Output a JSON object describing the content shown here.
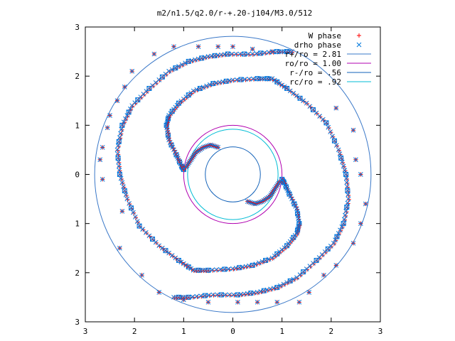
{
  "chart_data": {
    "type": "scatter",
    "title": "m2/n1.5/q2.0/r-+.20-j104/M3.0/512",
    "xlim": [
      -3,
      3
    ],
    "ylim": [
      -3,
      3
    ],
    "xticks": [
      {
        "value": -3,
        "label": "3"
      },
      {
        "value": -2,
        "label": "2"
      },
      {
        "value": -1,
        "label": "1"
      },
      {
        "value": 0,
        "label": "0"
      },
      {
        "value": 1,
        "label": "1"
      },
      {
        "value": 2,
        "label": "2"
      },
      {
        "value": 3,
        "label": "3"
      }
    ],
    "yticks": [
      {
        "value": 3,
        "label": "3"
      },
      {
        "value": 2,
        "label": "2"
      },
      {
        "value": 1,
        "label": "1"
      },
      {
        "value": 0,
        "label": "0"
      },
      {
        "value": -1,
        "label": "1"
      },
      {
        "value": -2,
        "label": "2"
      },
      {
        "value": -3,
        "label": "3"
      }
    ],
    "legend_position": "top-right",
    "spiral_series": [
      {
        "name": "W phase",
        "marker": "+",
        "color": "#ff0000"
      },
      {
        "name": "drho phase",
        "marker": "x",
        "color": "#0077dd"
      }
    ],
    "spiral_curves": {
      "inner_arm": [
        [
          -1.0,
          0.1
        ],
        [
          -1.05,
          0.18
        ],
        [
          -1.15,
          0.4
        ],
        [
          -1.3,
          0.7
        ],
        [
          -1.35,
          1.0
        ],
        [
          -1.3,
          1.2
        ],
        [
          -1.1,
          1.45
        ],
        [
          -0.8,
          1.7
        ],
        [
          -0.4,
          1.85
        ],
        [
          0,
          1.92
        ],
        [
          0.5,
          1.95
        ],
        [
          0.8,
          1.95
        ],
        [
          1.1,
          1.75
        ],
        [
          1.5,
          1.45
        ],
        [
          1.9,
          1.05
        ],
        [
          2.15,
          0.5
        ],
        [
          2.3,
          0.0
        ],
        [
          2.35,
          -0.5
        ],
        [
          2.25,
          -1.0
        ],
        [
          2.05,
          -1.4
        ],
        [
          1.7,
          -1.75
        ],
        [
          1.3,
          -2.1
        ],
        [
          0.9,
          -2.3
        ],
        [
          0.5,
          -2.4
        ],
        [
          0.1,
          -2.45
        ],
        [
          -0.4,
          -2.45
        ],
        [
          -0.9,
          -2.5
        ],
        [
          -1.2,
          -2.5
        ]
      ],
      "inner_arm_mirror": [
        [
          1.0,
          -0.1
        ],
        [
          1.05,
          -0.18
        ],
        [
          1.15,
          -0.4
        ],
        [
          1.3,
          -0.7
        ],
        [
          1.35,
          -1.0
        ],
        [
          1.3,
          -1.2
        ],
        [
          1.1,
          -1.45
        ],
        [
          0.8,
          -1.7
        ],
        [
          0.4,
          -1.85
        ],
        [
          0,
          -1.92
        ],
        [
          -0.5,
          -1.95
        ],
        [
          -0.8,
          -1.95
        ],
        [
          -1.1,
          -1.75
        ],
        [
          -1.5,
          -1.45
        ],
        [
          -1.9,
          -1.05
        ],
        [
          -2.15,
          -0.5
        ],
        [
          -2.3,
          0.0
        ],
        [
          -2.35,
          0.5
        ],
        [
          -2.25,
          1.0
        ],
        [
          -2.05,
          1.4
        ],
        [
          -1.7,
          1.75
        ],
        [
          -1.3,
          2.1
        ],
        [
          -0.9,
          2.3
        ],
        [
          -0.5,
          2.4
        ],
        [
          -0.1,
          2.45
        ],
        [
          0.4,
          2.45
        ],
        [
          0.9,
          2.5
        ],
        [
          1.2,
          2.5
        ]
      ],
      "hook_top": [
        [
          -0.95,
          0.15
        ],
        [
          -0.85,
          0.3
        ],
        [
          -0.75,
          0.45
        ],
        [
          -0.6,
          0.55
        ],
        [
          -0.45,
          0.6
        ],
        [
          -0.3,
          0.55
        ]
      ],
      "hook_bottom": [
        [
          0.95,
          -0.15
        ],
        [
          0.85,
          -0.3
        ],
        [
          0.75,
          -0.45
        ],
        [
          0.6,
          -0.55
        ],
        [
          0.45,
          -0.6
        ],
        [
          0.3,
          -0.55
        ]
      ],
      "outer_scatter": [
        [
          -2.25,
          -0.75
        ],
        [
          -2.65,
          -0.1
        ],
        [
          -2.7,
          0.3
        ],
        [
          -2.65,
          0.55
        ],
        [
          -2.55,
          0.95
        ],
        [
          -2.5,
          1.2
        ],
        [
          -2.35,
          1.5
        ],
        [
          -2.2,
          1.78
        ],
        [
          -2.05,
          2.1
        ],
        [
          -1.6,
          2.45
        ],
        [
          -1.2,
          2.6
        ],
        [
          -0.7,
          2.6
        ],
        [
          -0.3,
          2.6
        ],
        [
          0.0,
          2.6
        ],
        [
          0.4,
          2.55
        ],
        [
          0.8,
          2.5
        ],
        [
          2.1,
          1.35
        ],
        [
          2.45,
          0.9
        ],
        [
          2.5,
          0.3
        ],
        [
          2.6,
          -0.0
        ],
        [
          2.7,
          -0.6
        ],
        [
          2.6,
          -1.0
        ],
        [
          2.45,
          -1.4
        ],
        [
          2.1,
          -1.85
        ],
        [
          1.85,
          -2.05
        ],
        [
          1.55,
          -2.4
        ],
        [
          1.35,
          -2.6
        ],
        [
          0.9,
          -2.6
        ],
        [
          0.5,
          -2.6
        ],
        [
          0.1,
          -2.6
        ],
        [
          -0.5,
          -2.6
        ],
        [
          -1.0,
          -2.55
        ],
        [
          -1.5,
          -2.4
        ],
        [
          -1.85,
          -2.05
        ],
        [
          -2.3,
          -1.5
        ]
      ]
    },
    "legend_lines": [
      {
        "label": "r+/ro = 2.81",
        "color": "#3a78c8",
        "radius": 2.81
      },
      {
        "label": "ro/ro = 1.00",
        "color": "#b000b0",
        "radius": 1.0
      },
      {
        "label": "r-/ro = .56",
        "color": "#1060b8",
        "radius": 0.56
      },
      {
        "label": "rc/ro = .92",
        "color": "#00bcd4",
        "radius": 0.92
      }
    ]
  }
}
